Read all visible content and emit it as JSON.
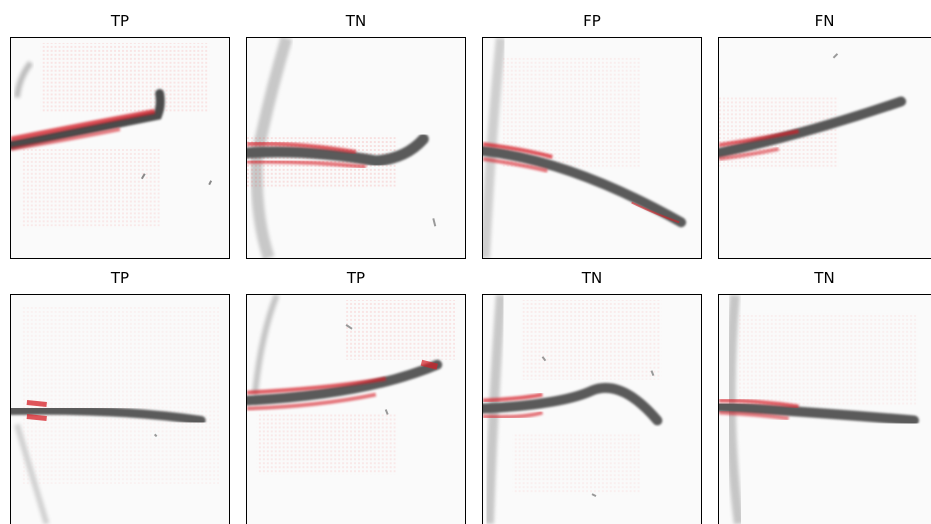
{
  "panels": [
    {
      "title": "TP"
    },
    {
      "title": "TN"
    },
    {
      "title": "FP"
    },
    {
      "title": "FN"
    },
    {
      "title": "TP"
    },
    {
      "title": "TP"
    },
    {
      "title": "TN"
    },
    {
      "title": "TN"
    }
  ],
  "colors": {
    "attention": "#e3242b",
    "specimen": "#6e6e6e",
    "background": "#fafafa"
  }
}
